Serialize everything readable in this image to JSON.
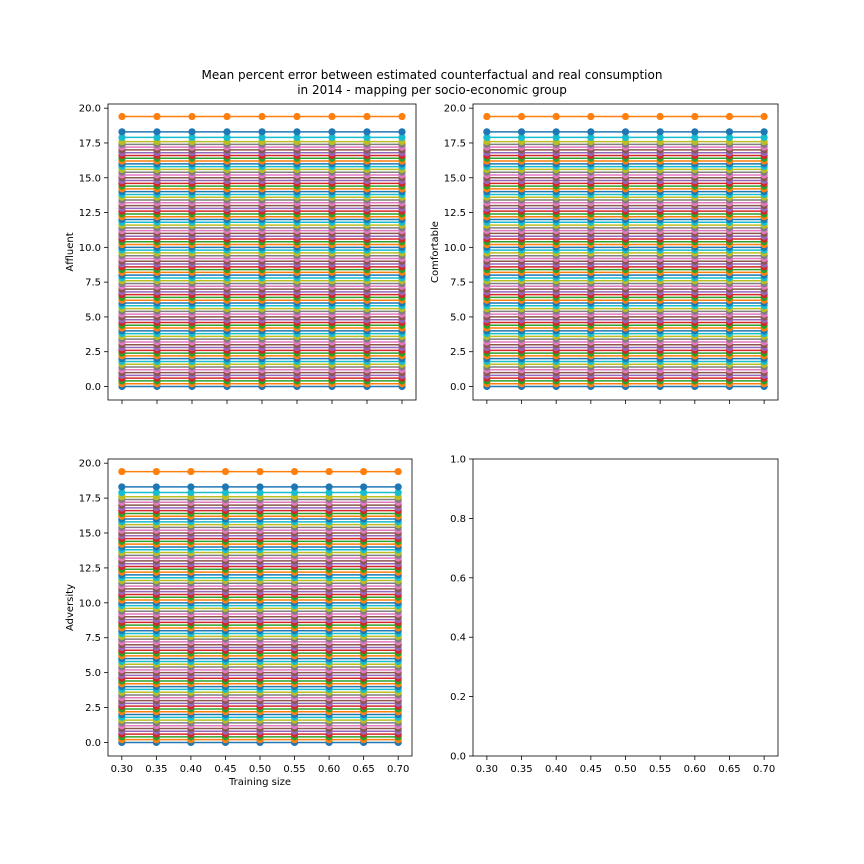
{
  "figure": {
    "title_lines": [
      "Mean percent error between estimated counterfactual and real consumption",
      "in 2014 - mapping per socio-economic group"
    ]
  },
  "chart_data": [
    {
      "type": "line",
      "panel": "top-left",
      "ylabel": "Affluent",
      "xlabel": "",
      "x": [
        0.3,
        0.35,
        0.4,
        0.45,
        0.5,
        0.55,
        0.6,
        0.65,
        0.7
      ],
      "xlim": [
        0.28,
        0.72
      ],
      "ylim": [
        -0.97,
        20.3
      ],
      "xticks": [
        "0.30",
        "0.35",
        "0.40",
        "0.45",
        "0.50",
        "0.55",
        "0.60",
        "0.65",
        "0.70"
      ],
      "show_xtick_labels": false,
      "yticks": [
        "0.0",
        "2.5",
        "5.0",
        "7.5",
        "10.0",
        "12.5",
        "15.0",
        "17.5",
        "20.0"
      ],
      "ytick_values": [
        0,
        2.5,
        5,
        7.5,
        10,
        12.5,
        15,
        17.5,
        20
      ],
      "series_note": "many constant series; each series y value is the same at every x",
      "series_values": [
        0.0,
        0.2,
        0.4,
        0.6,
        0.8,
        1.0,
        1.2,
        1.4,
        1.6,
        1.8,
        2.0,
        2.2,
        2.4,
        2.6,
        2.8,
        3.0,
        3.2,
        3.4,
        3.6,
        3.8,
        4.0,
        4.2,
        4.4,
        4.6,
        4.8,
        5.0,
        5.2,
        5.4,
        5.6,
        5.8,
        6.0,
        6.2,
        6.4,
        6.6,
        6.8,
        7.0,
        7.2,
        7.4,
        7.6,
        7.8,
        8.0,
        8.2,
        8.4,
        8.6,
        8.8,
        9.0,
        9.2,
        9.4,
        9.6,
        9.8,
        10.0,
        10.2,
        10.4,
        10.6,
        10.8,
        11.0,
        11.2,
        11.4,
        11.6,
        11.8,
        12.0,
        12.2,
        12.4,
        12.6,
        12.8,
        13.0,
        13.2,
        13.4,
        13.6,
        13.8,
        14.0,
        14.2,
        14.4,
        14.6,
        14.8,
        15.0,
        15.2,
        15.4,
        15.6,
        15.8,
        16.0,
        16.2,
        16.4,
        16.6,
        16.8,
        17.0,
        17.2,
        17.4,
        17.6,
        17.9,
        18.3,
        19.4
      ],
      "colors": [
        "#1f77b4",
        "#ff7f0e",
        "#2ca02c",
        "#d62728",
        "#9467bd",
        "#8c564b",
        "#e377c2",
        "#7f7f7f",
        "#bcbd22",
        "#17becf"
      ]
    },
    {
      "type": "line",
      "panel": "top-right",
      "ylabel": "Comfortable",
      "xlabel": "",
      "x": [
        0.3,
        0.35,
        0.4,
        0.45,
        0.5,
        0.55,
        0.6,
        0.65,
        0.7
      ],
      "xlim": [
        0.28,
        0.72
      ],
      "ylim": [
        -0.97,
        20.3
      ],
      "xticks": [
        "0.30",
        "0.35",
        "0.40",
        "0.45",
        "0.50",
        "0.55",
        "0.60",
        "0.65",
        "0.70"
      ],
      "show_xtick_labels": false,
      "yticks": [
        "0.0",
        "2.5",
        "5.0",
        "7.5",
        "10.0",
        "12.5",
        "15.0",
        "17.5",
        "20.0"
      ],
      "ytick_values": [
        0,
        2.5,
        5,
        7.5,
        10,
        12.5,
        15,
        17.5,
        20
      ],
      "series_note": "many constant series; each series y value is the same at every x",
      "series_values": [
        0.0,
        0.2,
        0.4,
        0.6,
        0.8,
        1.0,
        1.2,
        1.4,
        1.6,
        1.8,
        2.0,
        2.2,
        2.4,
        2.6,
        2.8,
        3.0,
        3.2,
        3.4,
        3.6,
        3.8,
        4.0,
        4.2,
        4.4,
        4.6,
        4.8,
        5.0,
        5.2,
        5.4,
        5.6,
        5.8,
        6.0,
        6.2,
        6.4,
        6.6,
        6.8,
        7.0,
        7.2,
        7.4,
        7.6,
        7.8,
        8.0,
        8.2,
        8.4,
        8.6,
        8.8,
        9.0,
        9.2,
        9.4,
        9.6,
        9.8,
        10.0,
        10.2,
        10.4,
        10.6,
        10.8,
        11.0,
        11.2,
        11.4,
        11.6,
        11.8,
        12.0,
        12.2,
        12.4,
        12.6,
        12.8,
        13.0,
        13.2,
        13.4,
        13.6,
        13.8,
        14.0,
        14.2,
        14.4,
        14.6,
        14.8,
        15.0,
        15.2,
        15.4,
        15.6,
        15.8,
        16.0,
        16.2,
        16.4,
        16.6,
        16.8,
        17.0,
        17.2,
        17.4,
        17.6,
        17.9,
        18.3,
        19.4
      ],
      "colors": [
        "#1f77b4",
        "#ff7f0e",
        "#2ca02c",
        "#d62728",
        "#9467bd",
        "#8c564b",
        "#e377c2",
        "#7f7f7f",
        "#bcbd22",
        "#17becf"
      ]
    },
    {
      "type": "line",
      "panel": "bottom-left",
      "ylabel": "Adversity",
      "xlabel": "Training size",
      "x": [
        0.3,
        0.35,
        0.4,
        0.45,
        0.5,
        0.55,
        0.6,
        0.65,
        0.7
      ],
      "xlim": [
        0.28,
        0.72
      ],
      "ylim": [
        -0.97,
        20.3
      ],
      "xticks": [
        "0.30",
        "0.35",
        "0.40",
        "0.45",
        "0.50",
        "0.55",
        "0.60",
        "0.65",
        "0.70"
      ],
      "show_xtick_labels": true,
      "yticks": [
        "0.0",
        "2.5",
        "5.0",
        "7.5",
        "10.0",
        "12.5",
        "15.0",
        "17.5",
        "20.0"
      ],
      "ytick_values": [
        0,
        2.5,
        5,
        7.5,
        10,
        12.5,
        15,
        17.5,
        20
      ],
      "series_note": "many constant series; each series y value is the same at every x",
      "series_values": [
        0.0,
        0.2,
        0.4,
        0.6,
        0.8,
        1.0,
        1.2,
        1.4,
        1.6,
        1.8,
        2.0,
        2.2,
        2.4,
        2.6,
        2.8,
        3.0,
        3.2,
        3.4,
        3.6,
        3.8,
        4.0,
        4.2,
        4.4,
        4.6,
        4.8,
        5.0,
        5.2,
        5.4,
        5.6,
        5.8,
        6.0,
        6.2,
        6.4,
        6.6,
        6.8,
        7.0,
        7.2,
        7.4,
        7.6,
        7.8,
        8.0,
        8.2,
        8.4,
        8.6,
        8.8,
        9.0,
        9.2,
        9.4,
        9.6,
        9.8,
        10.0,
        10.2,
        10.4,
        10.6,
        10.8,
        11.0,
        11.2,
        11.4,
        11.6,
        11.8,
        12.0,
        12.2,
        12.4,
        12.6,
        12.8,
        13.0,
        13.2,
        13.4,
        13.6,
        13.8,
        14.0,
        14.2,
        14.4,
        14.6,
        14.8,
        15.0,
        15.2,
        15.4,
        15.6,
        15.8,
        16.0,
        16.2,
        16.4,
        16.6,
        16.8,
        17.0,
        17.2,
        17.4,
        17.6,
        17.9,
        18.3,
        19.4
      ],
      "colors": [
        "#1f77b4",
        "#ff7f0e",
        "#2ca02c",
        "#d62728",
        "#9467bd",
        "#8c564b",
        "#e377c2",
        "#7f7f7f",
        "#bcbd22",
        "#17becf"
      ]
    },
    {
      "type": "line",
      "panel": "bottom-right",
      "ylabel": "",
      "xlabel": "",
      "x": [],
      "xlim": [
        0.28,
        0.72
      ],
      "ylim": [
        0.0,
        1.0
      ],
      "xticks": [
        "0.30",
        "0.35",
        "0.40",
        "0.45",
        "0.50",
        "0.55",
        "0.60",
        "0.65",
        "0.70"
      ],
      "xtick_values": [
        0.3,
        0.35,
        0.4,
        0.45,
        0.5,
        0.55,
        0.6,
        0.65,
        0.7
      ],
      "show_xtick_labels": true,
      "yticks": [
        "0.0",
        "0.2",
        "0.4",
        "0.6",
        "0.8",
        "1.0"
      ],
      "ytick_values": [
        0,
        0.2,
        0.4,
        0.6,
        0.8,
        1.0
      ],
      "series_values": [],
      "colors": []
    }
  ]
}
